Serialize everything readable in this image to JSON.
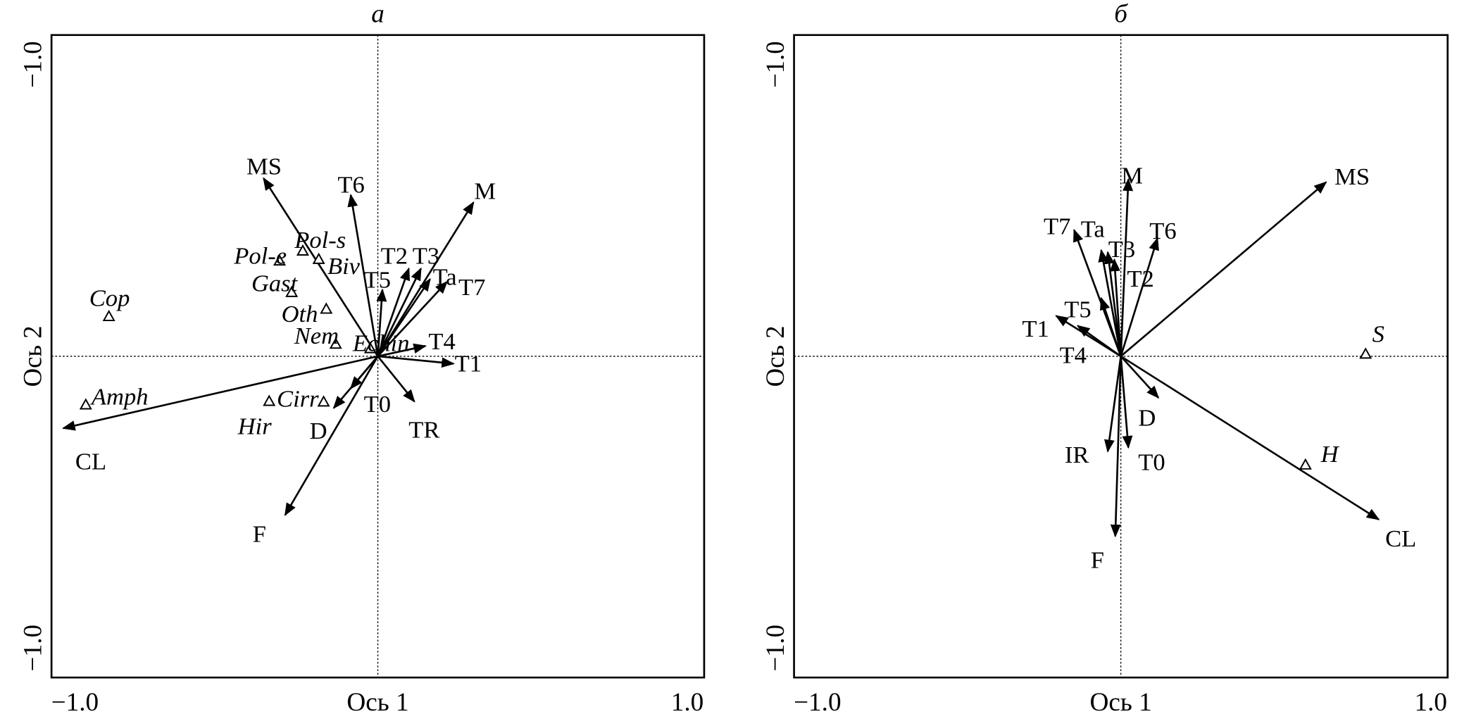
{
  "chart_data": [
    {
      "type": "scatter",
      "subtype": "biplot",
      "title": "а",
      "xlabel": "Ось 1",
      "ylabel": "Ось 2",
      "xlim": [
        -1.0,
        1.0
      ],
      "ylim": [
        -1.0,
        1.0
      ],
      "x_tick_labels": [
        "−1.0",
        "1.0"
      ],
      "y_tick_labels": [
        "−1.0",
        "−1.0"
      ],
      "grid": false,
      "reference_lines": "dotted at 0",
      "arrows": [
        {
          "name": "MS",
          "x": -0.35,
          "y": 0.554
        },
        {
          "name": "T6",
          "x": -0.083,
          "y": 0.502
        },
        {
          "name": "M",
          "x": 0.293,
          "y": 0.479
        },
        {
          "name": "T2",
          "x": 0.095,
          "y": 0.273
        },
        {
          "name": "T3",
          "x": 0.132,
          "y": 0.273
        },
        {
          "name": "Ta",
          "x": 0.16,
          "y": 0.24
        },
        {
          "name": "T7",
          "x": 0.212,
          "y": 0.232
        },
        {
          "name": "T5",
          "x": 0.014,
          "y": 0.207
        },
        {
          "name": "T4",
          "x": 0.146,
          "y": 0.032
        },
        {
          "name": "T1",
          "x": 0.232,
          "y": -0.023
        },
        {
          "name": "TR",
          "x": 0.112,
          "y": -0.141
        },
        {
          "name": "T0",
          "x": -0.083,
          "y": -0.1
        },
        {
          "name": "D",
          "x": -0.135,
          "y": -0.161
        },
        {
          "name": "F",
          "x": -0.284,
          "y": -0.494
        },
        {
          "name": "CL",
          "x": -0.964,
          "y": -0.224
        }
      ],
      "points": [
        {
          "name": "Cop",
          "x": -0.824,
          "y": 0.123
        },
        {
          "name": "Amph",
          "x": -0.895,
          "y": -0.152
        },
        {
          "name": "Pol-e",
          "x": -0.301,
          "y": 0.296
        },
        {
          "name": "Pol-s",
          "x": -0.23,
          "y": 0.327
        },
        {
          "name": "Biv",
          "x": -0.181,
          "y": 0.301
        },
        {
          "name": "Gast",
          "x": -0.264,
          "y": 0.198
        },
        {
          "name": "Oth",
          "x": -0.158,
          "y": 0.146
        },
        {
          "name": "Nem",
          "x": -0.129,
          "y": 0.037
        },
        {
          "name": "Echin",
          "x": -0.023,
          "y": 0.023
        },
        {
          "name": "Cirr",
          "x": -0.166,
          "y": -0.143
        },
        {
          "name": "Hir",
          "x": -0.333,
          "y": -0.141
        }
      ]
    },
    {
      "type": "scatter",
      "subtype": "biplot",
      "title": "б",
      "xlabel": "Ось 1",
      "ylabel": "Ось 2",
      "xlim": [
        -1.0,
        1.0
      ],
      "ylim": [
        -1.0,
        1.0
      ],
      "x_tick_labels": [
        "−1.0",
        "1.0"
      ],
      "y_tick_labels": [
        "−1.0",
        "−1.0"
      ],
      "grid": false,
      "reference_lines": "dotted at 0",
      "arrows": [
        {
          "name": "M",
          "x": 0.023,
          "y": 0.551
        },
        {
          "name": "MS",
          "x": 0.628,
          "y": 0.542
        },
        {
          "name": "T7",
          "x": -0.143,
          "y": 0.393
        },
        {
          "name": "Ta",
          "x": -0.06,
          "y": 0.33
        },
        {
          "name": "T3",
          "x": -0.04,
          "y": 0.324
        },
        {
          "name": "T6",
          "x": 0.112,
          "y": 0.367
        },
        {
          "name": "T2",
          "x": -0.02,
          "y": 0.301
        },
        {
          "name": "T5",
          "x": -0.06,
          "y": 0.181
        },
        {
          "name": "T1",
          "x": -0.198,
          "y": 0.126
        },
        {
          "name": "T4",
          "x": -0.132,
          "y": 0.095
        },
        {
          "name": "D",
          "x": 0.115,
          "y": -0.129
        },
        {
          "name": "IR",
          "x": -0.04,
          "y": -0.296
        },
        {
          "name": "T0",
          "x": 0.023,
          "y": -0.284
        },
        {
          "name": "F",
          "x": -0.017,
          "y": -0.56
        },
        {
          "name": "CL",
          "x": 0.789,
          "y": -0.508
        }
      ],
      "points": [
        {
          "name": "S",
          "x": 0.749,
          "y": 0.006
        },
        {
          "name": "H",
          "x": 0.565,
          "y": -0.339
        }
      ]
    }
  ]
}
